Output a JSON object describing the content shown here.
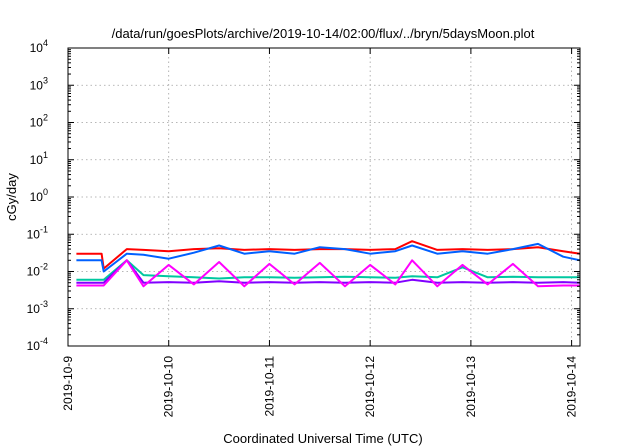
{
  "chart_data": {
    "type": "line",
    "title": "/data/run/goesPlots/archive/2019-10-14/02:00/flux/../bryn/5daysMoon.plot",
    "xlabel": "Coordinated Universal Time (UTC)",
    "ylabel": "cGy/day",
    "y_scale": "log",
    "ylim": [
      0.0001,
      10000
    ],
    "y_ticks": [
      {
        "base": "10",
        "exp": "-4"
      },
      {
        "base": "10",
        "exp": "-3"
      },
      {
        "base": "10",
        "exp": "-2"
      },
      {
        "base": "10",
        "exp": "-1"
      },
      {
        "base": "10",
        "exp": "0"
      },
      {
        "base": "10",
        "exp": "1"
      },
      {
        "base": "10",
        "exp": "2"
      },
      {
        "base": "10",
        "exp": "3"
      },
      {
        "base": "10",
        "exp": "4"
      }
    ],
    "xlim": [
      "2019-10-09T00:00",
      "2019-10-14T02:00"
    ],
    "x_ticks": [
      "2019-10-9",
      "2019-10-10",
      "2019-10-11",
      "2019-10-12",
      "2019-10-13",
      "2019-10-14"
    ],
    "grid": true,
    "legend": "none",
    "series": [
      {
        "color": "#ff0000",
        "x": [
          "2019-10-09T02:00",
          "2019-10-09T08:00",
          "2019-10-09T08:30",
          "2019-10-09T14:00",
          "2019-10-09T18:00",
          "2019-10-10T00:00",
          "2019-10-10T06:00",
          "2019-10-10T12:00",
          "2019-10-10T18:00",
          "2019-10-11T00:00",
          "2019-10-11T06:00",
          "2019-10-11T12:00",
          "2019-10-11T18:00",
          "2019-10-12T00:00",
          "2019-10-12T06:00",
          "2019-10-12T10:00",
          "2019-10-12T16:00",
          "2019-10-12T22:00",
          "2019-10-13T04:00",
          "2019-10-13T10:00",
          "2019-10-13T16:00",
          "2019-10-13T22:00",
          "2019-10-14T02:00"
        ],
        "y": [
          0.03,
          0.03,
          0.012,
          0.04,
          0.038,
          0.035,
          0.04,
          0.042,
          0.038,
          0.04,
          0.038,
          0.04,
          0.04,
          0.038,
          0.04,
          0.065,
          0.038,
          0.04,
          0.038,
          0.04,
          0.045,
          0.035,
          0.03
        ]
      },
      {
        "color": "#0060ff",
        "x": [
          "2019-10-09T02:00",
          "2019-10-09T08:00",
          "2019-10-09T08:30",
          "2019-10-09T14:00",
          "2019-10-09T18:00",
          "2019-10-10T00:00",
          "2019-10-10T06:00",
          "2019-10-10T12:00",
          "2019-10-10T18:00",
          "2019-10-11T00:00",
          "2019-10-11T06:00",
          "2019-10-11T12:00",
          "2019-10-11T18:00",
          "2019-10-12T00:00",
          "2019-10-12T06:00",
          "2019-10-12T10:00",
          "2019-10-12T16:00",
          "2019-10-12T22:00",
          "2019-10-13T04:00",
          "2019-10-13T10:00",
          "2019-10-13T16:00",
          "2019-10-13T22:00",
          "2019-10-14T02:00"
        ],
        "y": [
          0.02,
          0.02,
          0.01,
          0.03,
          0.028,
          0.022,
          0.032,
          0.05,
          0.03,
          0.035,
          0.03,
          0.045,
          0.04,
          0.03,
          0.035,
          0.05,
          0.03,
          0.035,
          0.03,
          0.04,
          0.055,
          0.025,
          0.02
        ]
      },
      {
        "color": "#00c8a0",
        "x": [
          "2019-10-09T02:00",
          "2019-10-09T08:00",
          "2019-10-09T08:30",
          "2019-10-09T14:00",
          "2019-10-09T18:00",
          "2019-10-10T00:00",
          "2019-10-10T06:00",
          "2019-10-10T12:00",
          "2019-10-10T18:00",
          "2019-10-11T00:00",
          "2019-10-11T06:00",
          "2019-10-11T12:00",
          "2019-10-11T18:00",
          "2019-10-12T00:00",
          "2019-10-12T06:00",
          "2019-10-12T10:00",
          "2019-10-12T16:00",
          "2019-10-12T22:00",
          "2019-10-13T04:00",
          "2019-10-13T10:00",
          "2019-10-13T16:00",
          "2019-10-13T22:00",
          "2019-10-14T02:00"
        ],
        "y": [
          0.006,
          0.006,
          0.006,
          0.02,
          0.008,
          0.0075,
          0.007,
          0.0065,
          0.007,
          0.007,
          0.0068,
          0.007,
          0.0072,
          0.007,
          0.0068,
          0.0075,
          0.007,
          0.013,
          0.007,
          0.0072,
          0.007,
          0.007,
          0.007
        ]
      },
      {
        "color": "#8000ff",
        "x": [
          "2019-10-09T02:00",
          "2019-10-09T08:00",
          "2019-10-09T08:30",
          "2019-10-09T14:00",
          "2019-10-09T18:00",
          "2019-10-10T00:00",
          "2019-10-10T06:00",
          "2019-10-10T12:00",
          "2019-10-10T18:00",
          "2019-10-11T00:00",
          "2019-10-11T06:00",
          "2019-10-11T12:00",
          "2019-10-11T18:00",
          "2019-10-12T00:00",
          "2019-10-12T06:00",
          "2019-10-12T10:00",
          "2019-10-12T16:00",
          "2019-10-12T22:00",
          "2019-10-13T04:00",
          "2019-10-13T10:00",
          "2019-10-13T16:00",
          "2019-10-13T22:00",
          "2019-10-14T02:00"
        ],
        "y": [
          0.005,
          0.005,
          0.005,
          0.02,
          0.005,
          0.0052,
          0.005,
          0.0055,
          0.005,
          0.0052,
          0.005,
          0.0052,
          0.005,
          0.0052,
          0.005,
          0.006,
          0.005,
          0.0052,
          0.005,
          0.0052,
          0.005,
          0.0052,
          0.005
        ]
      },
      {
        "color": "#ff00ff",
        "x": [
          "2019-10-09T02:00",
          "2019-10-09T08:00",
          "2019-10-09T08:30",
          "2019-10-09T14:00",
          "2019-10-09T18:00",
          "2019-10-10T00:00",
          "2019-10-10T06:00",
          "2019-10-10T12:00",
          "2019-10-10T18:00",
          "2019-10-11T00:00",
          "2019-10-11T06:00",
          "2019-10-11T12:00",
          "2019-10-11T18:00",
          "2019-10-12T00:00",
          "2019-10-12T06:00",
          "2019-10-12T10:00",
          "2019-10-12T16:00",
          "2019-10-12T22:00",
          "2019-10-13T04:00",
          "2019-10-13T10:00",
          "2019-10-13T16:00",
          "2019-10-13T22:00",
          "2019-10-14T02:00"
        ],
        "y": [
          0.0042,
          0.0042,
          0.0042,
          0.02,
          0.004,
          0.015,
          0.0045,
          0.018,
          0.004,
          0.016,
          0.0045,
          0.017,
          0.004,
          0.015,
          0.0045,
          0.02,
          0.004,
          0.015,
          0.0045,
          0.016,
          0.004,
          0.0042,
          0.0042
        ]
      }
    ]
  }
}
